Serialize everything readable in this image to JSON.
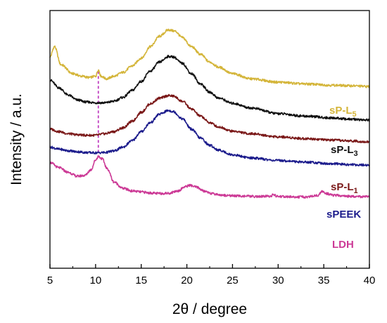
{
  "chart_data": {
    "type": "line",
    "title": "",
    "xlabel": "2θ / degree",
    "ylabel": "Intensity / a.u.",
    "xlim": [
      5,
      40
    ],
    "xticks": [
      5,
      10,
      15,
      20,
      25,
      30,
      35,
      40
    ],
    "y_ticks_shown": false,
    "grid": false,
    "legend": "inline labels at right end of each trace",
    "reference_line": {
      "x": 10.3,
      "style": "dashed",
      "color": "#c040c0"
    },
    "series": [
      {
        "name": "sP-L",
        "name_subscript": "5",
        "color": "#d4b53a",
        "points": [
          [
            5.0,
            0.82
          ],
          [
            5.5,
            0.86
          ],
          [
            6.2,
            0.79
          ],
          [
            7.5,
            0.755
          ],
          [
            8.5,
            0.745
          ],
          [
            9.3,
            0.74
          ],
          [
            10.0,
            0.745
          ],
          [
            10.3,
            0.77
          ],
          [
            10.6,
            0.745
          ],
          [
            11.2,
            0.735
          ],
          [
            12.0,
            0.745
          ],
          [
            13.0,
            0.76
          ],
          [
            14.0,
            0.785
          ],
          [
            15.0,
            0.815
          ],
          [
            16.0,
            0.86
          ],
          [
            17.0,
            0.9
          ],
          [
            18.0,
            0.925
          ],
          [
            18.7,
            0.92
          ],
          [
            19.5,
            0.895
          ],
          [
            20.5,
            0.86
          ],
          [
            21.5,
            0.83
          ],
          [
            22.5,
            0.8
          ],
          [
            23.5,
            0.78
          ],
          [
            25.0,
            0.755
          ],
          [
            27.0,
            0.735
          ],
          [
            30.0,
            0.722
          ],
          [
            33.0,
            0.715
          ],
          [
            36.0,
            0.71
          ],
          [
            38.0,
            0.708
          ],
          [
            40.0,
            0.705
          ]
        ]
      },
      {
        "name": "sP-L",
        "name_subscript": "3",
        "color": "#111111",
        "points": [
          [
            5.0,
            0.73
          ],
          [
            6.0,
            0.7
          ],
          [
            7.0,
            0.672
          ],
          [
            8.0,
            0.653
          ],
          [
            9.0,
            0.645
          ],
          [
            10.0,
            0.642
          ],
          [
            11.0,
            0.642
          ],
          [
            12.0,
            0.648
          ],
          [
            13.0,
            0.663
          ],
          [
            14.0,
            0.69
          ],
          [
            15.0,
            0.725
          ],
          [
            16.0,
            0.765
          ],
          [
            17.0,
            0.8
          ],
          [
            18.0,
            0.822
          ],
          [
            18.5,
            0.82
          ],
          [
            19.5,
            0.795
          ],
          [
            20.5,
            0.755
          ],
          [
            21.5,
            0.715
          ],
          [
            22.5,
            0.683
          ],
          [
            23.5,
            0.66
          ],
          [
            25.0,
            0.64
          ],
          [
            27.0,
            0.622
          ],
          [
            30.0,
            0.6
          ],
          [
            33.0,
            0.59
          ],
          [
            36.0,
            0.583
          ],
          [
            38.0,
            0.578
          ],
          [
            40.0,
            0.575
          ]
        ]
      },
      {
        "name": "sP-L",
        "name_subscript": "1",
        "color": "#7a1818",
        "points": [
          [
            5.0,
            0.54
          ],
          [
            6.0,
            0.53
          ],
          [
            7.0,
            0.522
          ],
          [
            8.0,
            0.518
          ],
          [
            9.0,
            0.516
          ],
          [
            10.0,
            0.516
          ],
          [
            11.0,
            0.522
          ],
          [
            12.0,
            0.53
          ],
          [
            13.0,
            0.545
          ],
          [
            14.0,
            0.57
          ],
          [
            15.0,
            0.605
          ],
          [
            16.0,
            0.638
          ],
          [
            17.0,
            0.66
          ],
          [
            18.0,
            0.67
          ],
          [
            18.5,
            0.668
          ],
          [
            19.5,
            0.648
          ],
          [
            20.5,
            0.618
          ],
          [
            21.5,
            0.59
          ],
          [
            22.5,
            0.565
          ],
          [
            23.5,
            0.548
          ],
          [
            25.0,
            0.532
          ],
          [
            27.0,
            0.522
          ],
          [
            30.0,
            0.51
          ],
          [
            33.0,
            0.503
          ],
          [
            36.0,
            0.497
          ],
          [
            38.0,
            0.494
          ],
          [
            40.0,
            0.49
          ]
        ]
      },
      {
        "name": "sPEEK",
        "color": "#1c1c8c",
        "points": [
          [
            5.0,
            0.47
          ],
          [
            6.0,
            0.462
          ],
          [
            7.0,
            0.456
          ],
          [
            8.0,
            0.452
          ],
          [
            9.0,
            0.449
          ],
          [
            10.0,
            0.448
          ],
          [
            11.0,
            0.449
          ],
          [
            12.0,
            0.455
          ],
          [
            13.0,
            0.47
          ],
          [
            14.0,
            0.495
          ],
          [
            15.0,
            0.53
          ],
          [
            16.0,
            0.565
          ],
          [
            17.0,
            0.598
          ],
          [
            18.0,
            0.612
          ],
          [
            18.5,
            0.608
          ],
          [
            19.5,
            0.58
          ],
          [
            20.5,
            0.54
          ],
          [
            21.5,
            0.505
          ],
          [
            22.5,
            0.477
          ],
          [
            23.5,
            0.458
          ],
          [
            25.0,
            0.44
          ],
          [
            27.0,
            0.428
          ],
          [
            30.0,
            0.418
          ],
          [
            33.0,
            0.412
          ],
          [
            36.0,
            0.405
          ],
          [
            38.0,
            0.402
          ],
          [
            40.0,
            0.4
          ]
        ]
      },
      {
        "name": "LDH",
        "color": "#cc3a96",
        "points": [
          [
            5.0,
            0.41
          ],
          [
            6.0,
            0.39
          ],
          [
            7.0,
            0.372
          ],
          [
            8.0,
            0.357
          ],
          [
            8.8,
            0.36
          ],
          [
            9.5,
            0.382
          ],
          [
            10.0,
            0.42
          ],
          [
            10.3,
            0.434
          ],
          [
            10.7,
            0.425
          ],
          [
            11.3,
            0.385
          ],
          [
            12.0,
            0.335
          ],
          [
            13.0,
            0.31
          ],
          [
            14.0,
            0.3
          ],
          [
            15.0,
            0.296
          ],
          [
            16.0,
            0.292
          ],
          [
            17.0,
            0.29
          ],
          [
            18.0,
            0.291
          ],
          [
            19.0,
            0.3
          ],
          [
            19.8,
            0.316
          ],
          [
            20.3,
            0.322
          ],
          [
            21.0,
            0.315
          ],
          [
            22.0,
            0.298
          ],
          [
            23.0,
            0.288
          ],
          [
            24.0,
            0.283
          ],
          [
            26.0,
            0.28
          ],
          [
            28.0,
            0.278
          ],
          [
            29.2,
            0.28
          ],
          [
            29.5,
            0.286
          ],
          [
            29.8,
            0.279
          ],
          [
            31.0,
            0.277
          ],
          [
            33.0,
            0.276
          ],
          [
            34.3,
            0.282
          ],
          [
            34.8,
            0.297
          ],
          [
            35.3,
            0.29
          ],
          [
            36.0,
            0.283
          ],
          [
            38.0,
            0.279
          ],
          [
            40.0,
            0.277
          ]
        ]
      }
    ]
  }
}
